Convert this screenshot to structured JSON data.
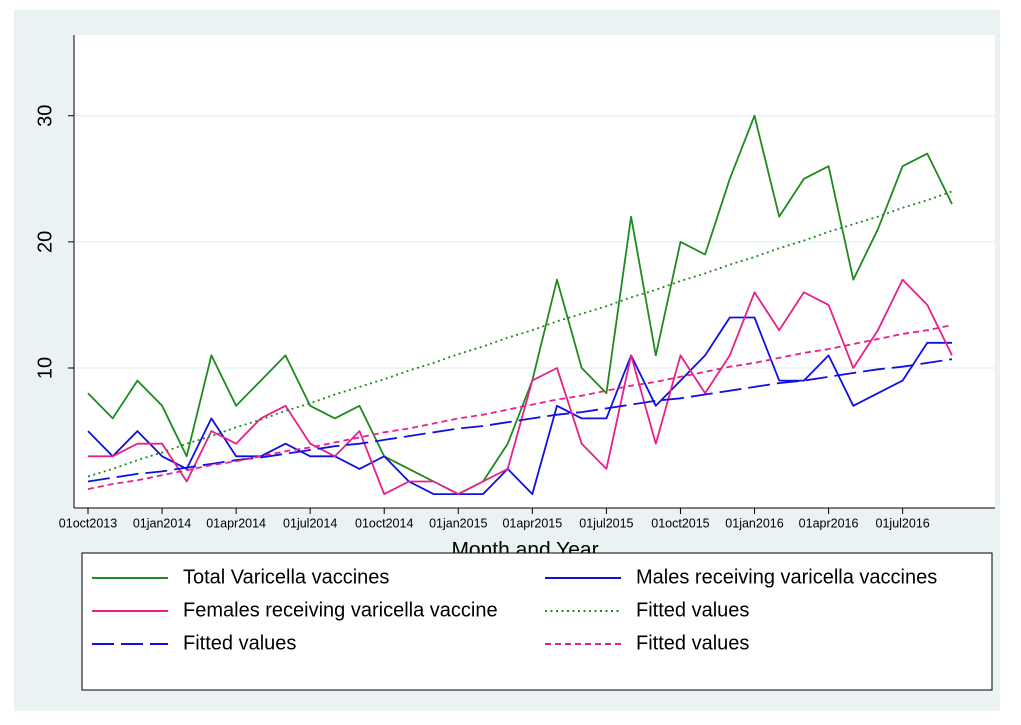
{
  "chart_data": {
    "type": "line",
    "x_label": "Month and Year",
    "categories": [
      "01oct2013",
      null,
      null,
      "01jan2014",
      null,
      null,
      "01apr2014",
      null,
      null,
      "01jul2014",
      null,
      null,
      "01oct2014",
      null,
      null,
      "01jan2015",
      null,
      null,
      "01apr2015",
      null,
      null,
      "01jul2015",
      null,
      null,
      "01oct2015",
      null,
      null,
      "01jan2016",
      null,
      null,
      "01apr2016",
      null,
      null,
      "01jul2016",
      null,
      null
    ],
    "ylim": [
      -1.1,
      36.4
    ],
    "yticks": [
      10,
      20,
      30
    ],
    "grid": true,
    "legend": "bottom",
    "series": [
      {
        "name": "Total Varicella vaccines",
        "color": "#1f8a1f",
        "style": "solid",
        "values": [
          8,
          6,
          9,
          7,
          3,
          11,
          7,
          9,
          11,
          7,
          6,
          7,
          3,
          2,
          1,
          0,
          1,
          4,
          9,
          17,
          10,
          8,
          22,
          11,
          20,
          19,
          25,
          30,
          22,
          25,
          26,
          17,
          21,
          26,
          27,
          23
        ]
      },
      {
        "name": "Males receiving varicella vaccines",
        "color": "#1010e0",
        "style": "solid",
        "values": [
          5,
          3,
          5,
          3,
          2,
          6,
          3,
          3,
          4,
          3,
          3,
          2,
          3,
          1,
          0,
          0,
          0,
          2,
          0,
          7,
          6,
          6,
          11,
          7,
          9,
          11,
          14,
          14,
          9,
          9,
          11,
          7,
          8,
          9,
          12,
          12
        ]
      },
      {
        "name": "Females receiving varicella vaccine",
        "color": "#e8208a",
        "style": "solid",
        "values": [
          3,
          3,
          4,
          4,
          1,
          5,
          4,
          6,
          7,
          4,
          3,
          5,
          0,
          1,
          1,
          0,
          1,
          2,
          9,
          10,
          4,
          2,
          11,
          4,
          11,
          8,
          11,
          16,
          13,
          16,
          15,
          10,
          13,
          17,
          15,
          11
        ]
      },
      {
        "name": "Fitted values",
        "color": "#1f8a1f",
        "style": "dotted",
        "values": [
          1.4,
          2.0,
          2.7,
          3.3,
          4.0,
          4.6,
          5.3,
          5.9,
          6.6,
          7.2,
          7.9,
          8.5,
          9.1,
          9.8,
          10.4,
          11.1,
          11.7,
          12.4,
          13.0,
          13.7,
          14.3,
          14.9,
          15.6,
          16.2,
          16.9,
          17.5,
          18.2,
          18.8,
          19.5,
          20.1,
          20.8,
          21.4,
          22.0,
          22.7,
          23.3,
          24.0
        ]
      },
      {
        "name": "Fitted values",
        "color": "#1010e0",
        "style": "longdash",
        "values": [
          1.0,
          1.3,
          1.6,
          1.8,
          2.1,
          2.4,
          2.7,
          2.9,
          3.2,
          3.5,
          3.8,
          4.0,
          4.3,
          4.6,
          4.9,
          5.2,
          5.4,
          5.7,
          6.0,
          6.3,
          6.5,
          6.8,
          7.1,
          7.4,
          7.6,
          7.9,
          8.2,
          8.5,
          8.8,
          9.0,
          9.3,
          9.6,
          9.9,
          10.1,
          10.4,
          10.7
        ]
      },
      {
        "name": "Fitted values",
        "color": "#e8208a",
        "style": "dash",
        "values": [
          0.4,
          0.8,
          1.1,
          1.5,
          1.9,
          2.3,
          2.6,
          3.0,
          3.4,
          3.7,
          4.1,
          4.5,
          4.9,
          5.2,
          5.6,
          6.0,
          6.3,
          6.7,
          7.1,
          7.5,
          7.8,
          8.2,
          8.6,
          8.9,
          9.3,
          9.7,
          10.1,
          10.4,
          10.8,
          11.2,
          11.5,
          11.9,
          12.3,
          12.7,
          13.0,
          13.4
        ]
      }
    ]
  }
}
